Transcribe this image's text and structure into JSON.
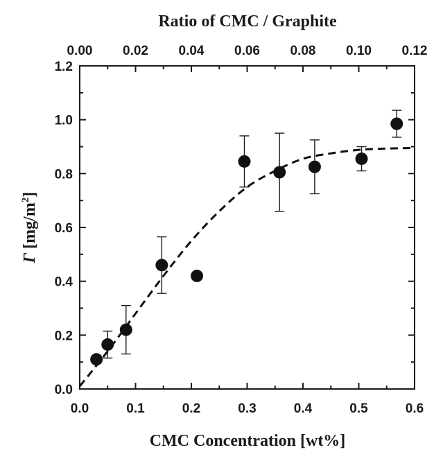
{
  "chart_data": {
    "type": "scatter",
    "title": "",
    "xlabel": "CMC Concentration [wt%]",
    "ylabel_symbol": "Γ",
    "ylabel_unit_base": " [mg/m",
    "ylabel_unit_exp": "2",
    "ylabel_unit_close": "]",
    "top_xlabel": "Ratio of CMC / Graphite",
    "xlim": [
      0.0,
      0.6
    ],
    "ylim": [
      0.0,
      1.2
    ],
    "top_xlim": [
      0.0,
      0.12
    ],
    "x_ticks": [
      "0.0",
      "0.1",
      "0.2",
      "0.3",
      "0.4",
      "0.5",
      "0.6"
    ],
    "x_tick_values": [
      0.0,
      0.1,
      0.2,
      0.3,
      0.4,
      0.5,
      0.6
    ],
    "y_ticks": [
      "0.0",
      "0.2",
      "0.4",
      "0.6",
      "0.8",
      "1.0",
      "1.2"
    ],
    "y_tick_values": [
      0.0,
      0.2,
      0.4,
      0.6,
      0.8,
      1.0,
      1.2
    ],
    "top_x_ticks": [
      "0.00",
      "0.02",
      "0.04",
      "0.06",
      "0.08",
      "0.10",
      "0.12"
    ],
    "top_x_tick_values": [
      0.0,
      0.02,
      0.04,
      0.06,
      0.08,
      0.1,
      0.12
    ],
    "grid": false,
    "series": [
      {
        "points": [
          {
            "x": 0.03,
            "y": 0.11,
            "err": 0.0
          },
          {
            "x": 0.05,
            "y": 0.165,
            "err": 0.05
          },
          {
            "x": 0.083,
            "y": 0.22,
            "err": 0.09
          },
          {
            "x": 0.147,
            "y": 0.46,
            "err": 0.105
          },
          {
            "x": 0.21,
            "y": 0.42,
            "err": 0.0
          },
          {
            "x": 0.295,
            "y": 0.845,
            "err": 0.095
          },
          {
            "x": 0.358,
            "y": 0.805,
            "err": 0.145
          },
          {
            "x": 0.421,
            "y": 0.825,
            "err": 0.1
          },
          {
            "x": 0.505,
            "y": 0.855,
            "err": 0.045
          },
          {
            "x": 0.568,
            "y": 0.985,
            "err": 0.05
          }
        ]
      }
    ],
    "fit_curve": {
      "style": "dashed",
      "x": [
        0.0,
        0.05,
        0.1,
        0.15,
        0.2,
        0.25,
        0.3,
        0.35,
        0.4,
        0.45,
        0.5,
        0.55,
        0.6
      ],
      "y": [
        0.01,
        0.14,
        0.28,
        0.42,
        0.55,
        0.66,
        0.75,
        0.81,
        0.855,
        0.875,
        0.888,
        0.893,
        0.895
      ]
    }
  }
}
